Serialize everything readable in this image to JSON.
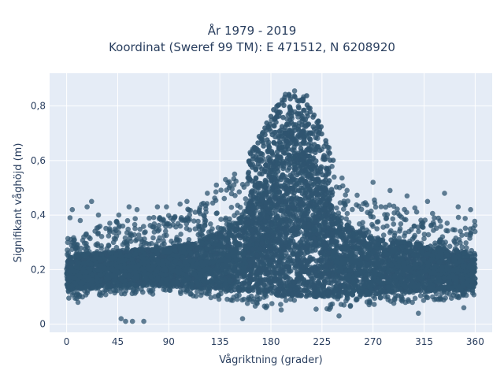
{
  "chart_data": {
    "type": "scatter",
    "title_line1": "År 1979 - 2019",
    "title_line2": "Koordinat (Sweref 99 TM): E 471512, N 6208920",
    "xlabel": "Vågriktning (grader)",
    "ylabel": "Signifikant våghöjd (m)",
    "xlim": [
      -15,
      375
    ],
    "ylim": [
      -0.03,
      0.92
    ],
    "x_ticks": [
      0,
      45,
      90,
      135,
      180,
      225,
      270,
      315,
      360
    ],
    "y_ticks": [
      0,
      0.2,
      0.4,
      0.6,
      0.8
    ],
    "y_tick_labels": [
      "0",
      "0,2",
      "0,4",
      "0,6",
      "0,8"
    ],
    "grid": true,
    "colors": {
      "background": "#e5ecf6",
      "grid": "#ffffff",
      "marker": "#2f5570"
    },
    "envelope": {
      "direction": [
        0,
        20,
        45,
        90,
        120,
        150,
        170,
        190,
        200,
        210,
        225,
        240,
        270,
        315,
        360
      ],
      "min_height": [
        0.09,
        0.1,
        0.11,
        0.11,
        0.1,
        0.08,
        0.06,
        0.05,
        0.05,
        0.05,
        0.05,
        0.06,
        0.07,
        0.08,
        0.1
      ],
      "max_height": [
        0.32,
        0.35,
        0.38,
        0.4,
        0.45,
        0.55,
        0.7,
        0.84,
        0.88,
        0.86,
        0.72,
        0.55,
        0.46,
        0.42,
        0.38
      ],
      "core_low": [
        0.13,
        0.13,
        0.14,
        0.14,
        0.13,
        0.12,
        0.11,
        0.1,
        0.1,
        0.1,
        0.1,
        0.1,
        0.11,
        0.12,
        0.13
      ],
      "core_high": [
        0.25,
        0.26,
        0.27,
        0.28,
        0.31,
        0.38,
        0.5,
        0.65,
        0.75,
        0.7,
        0.52,
        0.38,
        0.32,
        0.29,
        0.26
      ]
    },
    "outliers": [
      {
        "x": 3,
        "y": 0.39
      },
      {
        "x": 5,
        "y": 0.42
      },
      {
        "x": 12,
        "y": 0.38
      },
      {
        "x": 18,
        "y": 0.43
      },
      {
        "x": 22,
        "y": 0.45
      },
      {
        "x": 28,
        "y": 0.4
      },
      {
        "x": 38,
        "y": 0.37
      },
      {
        "x": 46,
        "y": 0.4
      },
      {
        "x": 55,
        "y": 0.43
      },
      {
        "x": 62,
        "y": 0.42
      },
      {
        "x": 80,
        "y": 0.43
      },
      {
        "x": 88,
        "y": 0.43
      },
      {
        "x": 100,
        "y": 0.44
      },
      {
        "x": 106,
        "y": 0.45
      },
      {
        "x": 124,
        "y": 0.48
      },
      {
        "x": 132,
        "y": 0.51
      },
      {
        "x": 140,
        "y": 0.53
      },
      {
        "x": 148,
        "y": 0.55
      },
      {
        "x": 270,
        "y": 0.52
      },
      {
        "x": 285,
        "y": 0.49
      },
      {
        "x": 300,
        "y": 0.47
      },
      {
        "x": 318,
        "y": 0.45
      },
      {
        "x": 333,
        "y": 0.48
      },
      {
        "x": 345,
        "y": 0.43
      },
      {
        "x": 356,
        "y": 0.42
      },
      {
        "x": 48,
        "y": 0.02
      },
      {
        "x": 52,
        "y": 0.01
      },
      {
        "x": 58,
        "y": 0.01
      },
      {
        "x": 68,
        "y": 0.01
      },
      {
        "x": 155,
        "y": 0.02
      },
      {
        "x": 240,
        "y": 0.03
      },
      {
        "x": 310,
        "y": 0.04
      },
      {
        "x": 350,
        "y": 0.06
      },
      {
        "x": 10,
        "y": 0.08
      }
    ]
  }
}
